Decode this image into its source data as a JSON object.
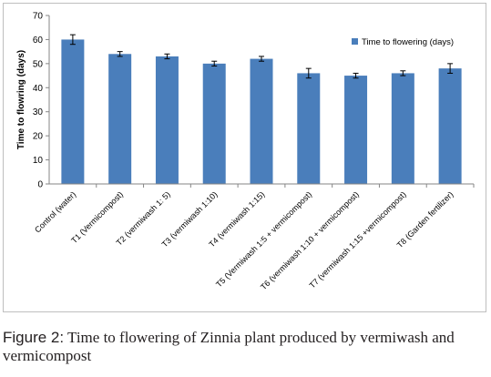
{
  "chart_data": {
    "type": "bar",
    "title": "",
    "xlabel": "",
    "ylabel": "Time to flowring (days)",
    "ylim": [
      0,
      70
    ],
    "yticks": [
      0,
      10,
      20,
      30,
      40,
      50,
      60,
      70
    ],
    "grid": false,
    "legend_position": "top-right",
    "categories": [
      "Control (water)",
      "T1 (Vermicompost)",
      "T2 (vermiwash 1: 5)",
      "T3 (vermiwash 1:10)",
      "T4 (vermiwash 1:15)",
      "T5 (Vermiwash 1:5 + vermicompost)",
      "T6 (vermiwash 1:10 + vermicompost)",
      "T7 (vermiwash 1:15 +vermicompost)",
      "T8 (Garden fertilizer)"
    ],
    "series": [
      {
        "name": "Time to flowering (days)",
        "color": "#4a7ebb",
        "values": [
          60,
          54,
          53,
          50,
          52,
          46,
          45,
          46,
          48
        ],
        "error": [
          2,
          1,
          1,
          1,
          1,
          2,
          1,
          1,
          2
        ]
      }
    ]
  },
  "caption": {
    "label": "Figure 2:",
    "text": " Time to flowering of Zinnia plant produced by vermiwash and vermicompost"
  }
}
